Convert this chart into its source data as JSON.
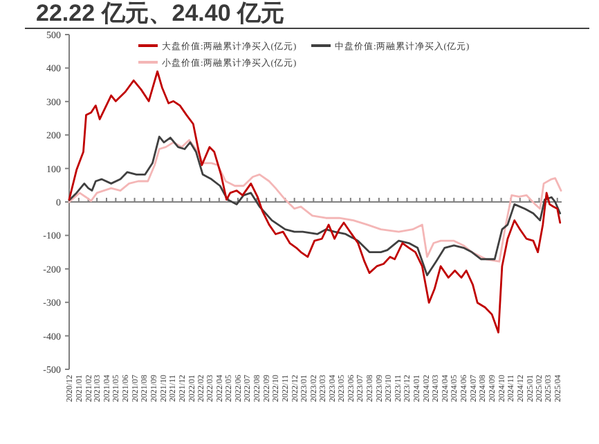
{
  "chart_data": {
    "type": "line",
    "title": "22.22 亿元、24.40 亿元",
    "legend": "top",
    "xlim": [
      "2020-12-01",
      "2025-04-15"
    ],
    "ylim": [
      -500,
      500
    ],
    "yticks": [
      -500,
      -400,
      -300,
      -200,
      -100,
      0,
      100,
      200,
      300,
      400,
      500
    ],
    "xticks": [
      {
        "value": "2020-12",
        "label": "2020/12"
      },
      {
        "value": "2021-01",
        "label": "2021/01"
      },
      {
        "value": "2021-02",
        "label": "2021/02"
      },
      {
        "value": "2021-03",
        "label": "2021/03"
      },
      {
        "value": "2021-04",
        "label": "2021/04"
      },
      {
        "value": "2021-05",
        "label": "2021/05"
      },
      {
        "value": "2021-06",
        "label": "2021/06"
      },
      {
        "value": "2021-07",
        "label": "2021/07"
      },
      {
        "value": "2021-08",
        "label": "2021/08"
      },
      {
        "value": "2021-09",
        "label": "2021/09"
      },
      {
        "value": "2021-10",
        "label": "2021/10"
      },
      {
        "value": "2021-11",
        "label": "2021/11"
      },
      {
        "value": "2021-12",
        "label": "2021/12"
      },
      {
        "value": "2022-01",
        "label": "2022/01"
      },
      {
        "value": "2022-02",
        "label": "2022/02"
      },
      {
        "value": "2022-03",
        "label": "2022/03"
      },
      {
        "value": "2022-04",
        "label": "2022/04"
      },
      {
        "value": "2022-05",
        "label": "2022/05"
      },
      {
        "value": "2022-06",
        "label": "2022/06"
      },
      {
        "value": "2022-07",
        "label": "2022/07"
      },
      {
        "value": "2022-08",
        "label": "2022/08"
      },
      {
        "value": "2022-09",
        "label": "2022/09"
      },
      {
        "value": "2022-10",
        "label": "2022/10"
      },
      {
        "value": "2022-11",
        "label": "2022/11"
      },
      {
        "value": "2022-12",
        "label": "2022/12"
      },
      {
        "value": "2023-01",
        "label": "2023/01"
      },
      {
        "value": "2023-02",
        "label": "2023/02"
      },
      {
        "value": "2023-03",
        "label": "2023/03"
      },
      {
        "value": "2023-04",
        "label": "2023/04"
      },
      {
        "value": "2023-05",
        "label": "2023/05"
      },
      {
        "value": "2023-06",
        "label": "2023/06"
      },
      {
        "value": "2023-07",
        "label": "2023/07"
      },
      {
        "value": "2023-08",
        "label": "2023/08"
      },
      {
        "value": "2023-09",
        "label": "2023/09"
      },
      {
        "value": "2023-10",
        "label": "2023/10"
      },
      {
        "value": "2023-11",
        "label": "2023/11"
      },
      {
        "value": "2023-12",
        "label": "2023/12"
      },
      {
        "value": "2024-01",
        "label": "2024/01"
      },
      {
        "value": "2024-02",
        "label": "2024/02"
      },
      {
        "value": "2024-03",
        "label": "2024/03"
      },
      {
        "value": "2024-04",
        "label": "2024/04"
      },
      {
        "value": "2024-05",
        "label": "2024/05"
      },
      {
        "value": "2024-06",
        "label": "2024/06"
      },
      {
        "value": "2024-07",
        "label": "2024/07"
      },
      {
        "value": "2024-08",
        "label": "2024/08"
      },
      {
        "value": "2024-09",
        "label": "2024/09"
      },
      {
        "value": "2024-10",
        "label": "2024/10"
      },
      {
        "value": "2024-11",
        "label": "2024/11"
      },
      {
        "value": "2024-12",
        "label": "2024/12"
      },
      {
        "value": "2025-01",
        "label": "2025/01"
      },
      {
        "value": "2025-02",
        "label": "2025/02"
      },
      {
        "value": "2025-03",
        "label": "2025/03"
      },
      {
        "value": "2025-04",
        "label": "2025/04"
      }
    ],
    "series": [
      {
        "name": "小盘价值:两融累计净买入(亿元)",
        "color": "#f4b6b6",
        "x": [
          "2020-12-01",
          "2021-01-04",
          "2021-01-25",
          "2021-02-10",
          "2021-03-01",
          "2021-04-16",
          "2021-05-16",
          "2021-06-13",
          "2021-07-13",
          "2021-08-13",
          "2021-09-04",
          "2021-09-19",
          "2021-10-10",
          "2021-11-04",
          "2021-12-01",
          "2021-12-25",
          "2022-01-22",
          "2022-02-07",
          "2022-03-07",
          "2022-03-28",
          "2022-04-22",
          "2022-05-22",
          "2022-06-19",
          "2022-07-19",
          "2022-08-10",
          "2022-09-10",
          "2022-10-01",
          "2022-11-01",
          "2022-12-01",
          "2022-12-22",
          "2023-01-28",
          "2023-03-13",
          "2023-04-25",
          "2023-06-10",
          "2023-07-25",
          "2023-09-07",
          "2023-11-04",
          "2023-12-19",
          "2024-01-19",
          "2024-02-04",
          "2024-02-25",
          "2024-03-19",
          "2024-05-01",
          "2024-06-01",
          "2024-06-28",
          "2024-08-13",
          "2024-09-25",
          "2024-10-13",
          "2024-11-04",
          "2024-11-28",
          "2024-12-22",
          "2025-01-19",
          "2025-02-04",
          "2025-02-16",
          "2025-03-13",
          "2025-03-25",
          "2025-04-13"
        ],
        "values": [
          0,
          27,
          14,
          3,
          27,
          41,
          34,
          55,
          62,
          62,
          110,
          158,
          164,
          178,
          164,
          185,
          150,
          116,
          116,
          110,
          62,
          48,
          48,
          75,
          82,
          62,
          41,
          7,
          -20,
          -14,
          -41,
          -48,
          -48,
          -55,
          -68,
          -82,
          -89,
          -82,
          -68,
          -164,
          -123,
          -116,
          -116,
          -130,
          -150,
          -171,
          -178,
          -82,
          20,
          16,
          20,
          -7,
          -20,
          55,
          68,
          71,
          34
        ]
      },
      {
        "name": "中盘价值:两融累计净买入(亿元)",
        "color": "#404040",
        "x": [
          "2020-12-01",
          "2020-12-25",
          "2021-01-19",
          "2021-02-01",
          "2021-02-13",
          "2021-02-25",
          "2021-03-16",
          "2021-04-16",
          "2021-05-16",
          "2021-06-07",
          "2021-07-07",
          "2021-08-04",
          "2021-08-28",
          "2021-09-19",
          "2021-10-04",
          "2021-10-25",
          "2021-11-19",
          "2021-12-10",
          "2021-12-28",
          "2022-01-16",
          "2022-02-07",
          "2022-03-07",
          "2022-04-04",
          "2022-04-28",
          "2022-05-28",
          "2022-06-19",
          "2022-07-13",
          "2022-08-10",
          "2022-09-19",
          "2022-11-01",
          "2022-12-01",
          "2022-12-28",
          "2023-02-13",
          "2023-03-13",
          "2023-04-10",
          "2023-05-16",
          "2023-06-25",
          "2023-08-01",
          "2023-09-07",
          "2023-09-28",
          "2023-11-04",
          "2023-12-07",
          "2024-01-04",
          "2024-02-04",
          "2024-03-04",
          "2024-04-01",
          "2024-05-01",
          "2024-06-01",
          "2024-06-28",
          "2024-07-28",
          "2024-09-10",
          "2024-10-04",
          "2024-10-22",
          "2024-11-13",
          "2024-12-16",
          "2025-01-13",
          "2025-02-04",
          "2025-02-19",
          "2025-03-13",
          "2025-03-25",
          "2025-04-10"
        ],
        "values": [
          5,
          27,
          55,
          41,
          34,
          62,
          68,
          55,
          68,
          89,
          82,
          82,
          116,
          195,
          178,
          192,
          164,
          158,
          178,
          150,
          82,
          68,
          48,
          7,
          -7,
          20,
          27,
          -14,
          -55,
          -82,
          -89,
          -89,
          -96,
          -82,
          -89,
          -96,
          -116,
          -150,
          -150,
          -144,
          -116,
          -123,
          -137,
          -219,
          -178,
          -137,
          -130,
          -137,
          -150,
          -171,
          -171,
          -82,
          -68,
          -7,
          -20,
          -34,
          -55,
          7,
          14,
          0,
          -34
        ]
      },
      {
        "name": "大盘价值:两融累计净买入(亿元)",
        "color": "#c00000",
        "x": [
          "2020-12-01",
          "2020-12-25",
          "2021-01-16",
          "2021-01-25",
          "2021-02-10",
          "2021-02-25",
          "2021-03-10",
          "2021-04-16",
          "2021-05-01",
          "2021-06-01",
          "2021-06-28",
          "2021-07-22",
          "2021-08-16",
          "2021-09-13",
          "2021-09-28",
          "2021-10-19",
          "2021-11-04",
          "2021-11-25",
          "2021-12-16",
          "2022-01-07",
          "2022-01-22",
          "2022-02-04",
          "2022-03-01",
          "2022-03-16",
          "2022-04-07",
          "2022-04-25",
          "2022-05-07",
          "2022-05-28",
          "2022-06-16",
          "2022-07-13",
          "2022-08-04",
          "2022-08-19",
          "2022-09-10",
          "2022-10-01",
          "2022-10-25",
          "2022-11-16",
          "2022-12-07",
          "2022-12-22",
          "2023-01-13",
          "2023-02-04",
          "2023-02-28",
          "2023-03-22",
          "2023-04-10",
          "2023-04-25",
          "2023-05-10",
          "2023-05-25",
          "2023-06-25",
          "2023-07-16",
          "2023-08-01",
          "2023-08-25",
          "2023-09-16",
          "2023-10-07",
          "2023-10-22",
          "2023-11-16",
          "2023-12-07",
          "2023-12-28",
          "2024-01-19",
          "2024-02-10",
          "2024-02-28",
          "2024-03-19",
          "2024-04-13",
          "2024-05-04",
          "2024-05-25",
          "2024-06-10",
          "2024-07-01",
          "2024-07-16",
          "2024-08-10",
          "2024-09-01",
          "2024-09-22",
          "2024-10-04",
          "2024-10-22",
          "2024-11-13",
          "2024-12-01",
          "2024-12-22",
          "2025-01-13",
          "2025-01-28",
          "2025-02-13",
          "2025-02-25",
          "2025-03-07",
          "2025-03-19",
          "2025-04-01",
          "2025-04-10"
        ],
        "values": [
          7,
          96,
          150,
          260,
          267,
          288,
          247,
          318,
          301,
          329,
          363,
          336,
          301,
          390,
          342,
          295,
          301,
          288,
          260,
          233,
          164,
          110,
          164,
          150,
          82,
          7,
          27,
          34,
          20,
          55,
          14,
          -27,
          -68,
          -96,
          -89,
          -123,
          -137,
          -150,
          -164,
          -116,
          -110,
          -68,
          -110,
          -82,
          -62,
          -82,
          -123,
          -178,
          -212,
          -192,
          -185,
          -164,
          -171,
          -123,
          -137,
          -150,
          -192,
          -301,
          -260,
          -192,
          -226,
          -205,
          -226,
          -205,
          -247,
          -301,
          -315,
          -336,
          -390,
          -192,
          -110,
          -55,
          -82,
          -110,
          -116,
          -150,
          -68,
          27,
          -7,
          -14,
          -20,
          -62
        ]
      }
    ]
  }
}
